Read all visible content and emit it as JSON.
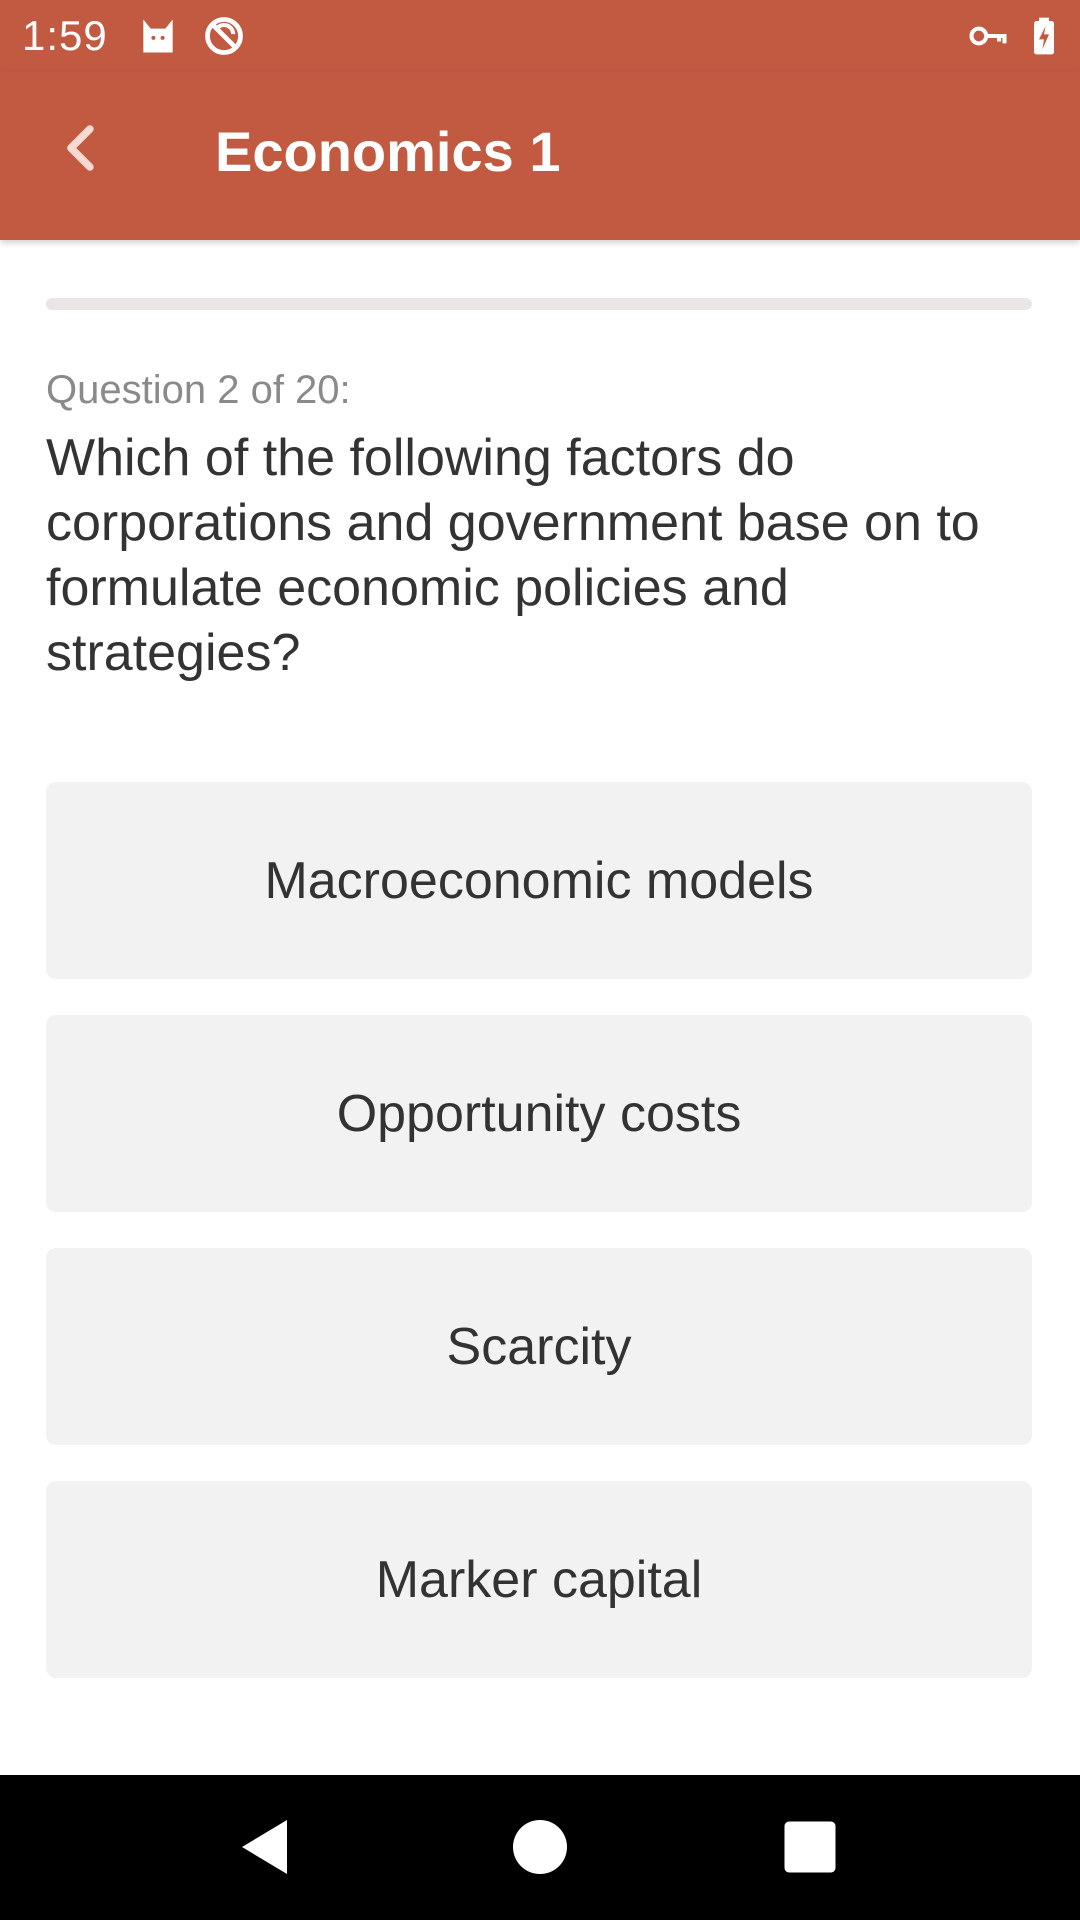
{
  "status_bar": {
    "time": "1:59",
    "icons": [
      "cat-icon",
      "no-sync-icon",
      "vpn-key-icon",
      "battery-charging-icon"
    ],
    "background_color": "#c25a42"
  },
  "app_bar": {
    "title": "Economics 1",
    "back_icon": "chevron-left-icon",
    "background_color": "#c25a42"
  },
  "quiz": {
    "progress_fraction": 0.0,
    "counter": "Question 2 of 20:",
    "question": "Which of the following factors do corporations and government base on to formulate economic policies and strategies?",
    "answers": [
      "Macroeconomic models",
      "Opportunity costs",
      "Scarcity",
      "Marker capital"
    ]
  },
  "nav_bar": {
    "icons": [
      "back-triangle-icon",
      "home-circle-icon",
      "recents-square-icon"
    ]
  }
}
